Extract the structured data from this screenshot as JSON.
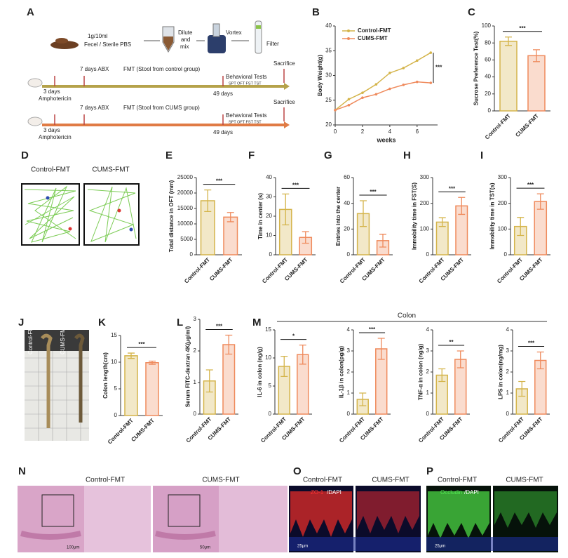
{
  "panel_letters": [
    "A",
    "B",
    "C",
    "D",
    "E",
    "F",
    "G",
    "H",
    "I",
    "J",
    "K",
    "L",
    "M",
    "N",
    "O",
    "P"
  ],
  "schematic": {
    "ratio": "1g/10ml",
    "medium": "Fecel / Sterile PBS",
    "dilute": [
      "Dilute",
      "and",
      "mix"
    ],
    "vortex": "Vortex",
    "filter": "Filter",
    "rows": [
      {
        "abx": "7 days ABX",
        "fmt": "FMT (Stool from control group)",
        "tests": "Behavioral Tests",
        "test_list": "SPT  OFT  FST  TST",
        "sacrifice": "Sacrifice",
        "days": "3 days",
        "drug": "Amphotericin",
        "duration": "49 days"
      },
      {
        "abx": "7 days ABX",
        "fmt": "FMT (Stool from CUMS group)",
        "tests": "Behavioral Tests",
        "test_list": "SPT  OFT  FST  TST",
        "sacrifice": "Sacrifice",
        "days": "3 days",
        "drug": "Amphotericin",
        "duration": "49 days"
      }
    ]
  },
  "oft_tracks": {
    "groups": [
      "Control-FMT",
      "CUMS-FMT"
    ]
  },
  "colon_images": {
    "groups": [
      "Control-FMT",
      "CUMS-FMT"
    ]
  },
  "m_header": "Colon",
  "histology": {
    "groups": [
      "Control-FMT",
      "CUMS-FMT"
    ],
    "scale_left": "100μm",
    "scale_right": "50μm"
  },
  "zo1": {
    "groups": [
      "Control-FMT",
      "CUMS-FMT"
    ],
    "stain": "ZO-1",
    "counter": "/DAPI",
    "scale": "25μm"
  },
  "occludin": {
    "groups": [
      "Control-FMT",
      "CUMS-FMT"
    ],
    "stain": "Occludin",
    "counter": "/DAPI",
    "scale": "25μm"
  },
  "chart_data": [
    {
      "type": "line",
      "x": [
        0,
        1,
        2,
        3,
        4,
        5,
        6,
        7
      ],
      "xlim": [
        0,
        7.5
      ],
      "xticks": [
        0,
        2,
        4,
        6
      ],
      "xlabel": "weeks",
      "ylabel": "Body Weight(g)",
      "ylim": [
        20,
        40
      ],
      "yticks": [
        20,
        25,
        30,
        35,
        40
      ],
      "annotation": "***",
      "series": [
        {
          "name": "Control-FMT",
          "color": "#d4b44a",
          "values": [
            23,
            25.2,
            26.5,
            28.2,
            30.5,
            31.5,
            33,
            34.6
          ]
        },
        {
          "name": "CUMS-FMT",
          "color": "#ef8a5c",
          "values": [
            23,
            24,
            25.5,
            26.2,
            27.3,
            28.1,
            28.7,
            28.5
          ]
        }
      ]
    },
    {
      "type": "bar",
      "categories": [
        "Control-FMT",
        "CUMS-FMT"
      ],
      "values": [
        82,
        65
      ],
      "errors": [
        5,
        7
      ],
      "colors": [
        "#d4b44a",
        "#ef8a5c"
      ],
      "ylabel": "Sucrose Preference Test(%)",
      "ylim": [
        0,
        100
      ],
      "yticks": [
        0,
        20,
        40,
        60,
        80,
        100
      ],
      "annotation": "***"
    },
    {
      "type": "bar",
      "categories": [
        "Control-FMT",
        "CUMS-FMT"
      ],
      "values": [
        17500,
        12200
      ],
      "errors": [
        3500,
        1500
      ],
      "colors": [
        "#d4b44a",
        "#ef8a5c"
      ],
      "ylabel": "Total distance in OFT (mm)",
      "ylim": [
        0,
        25000
      ],
      "yticks": [
        0,
        5000,
        10000,
        15000,
        20000,
        25000
      ],
      "annotation": "***"
    },
    {
      "type": "bar",
      "categories": [
        "Control-FMT",
        "CUMS-FMT"
      ],
      "values": [
        23.5,
        9
      ],
      "errors": [
        8,
        3
      ],
      "colors": [
        "#d4b44a",
        "#ef8a5c"
      ],
      "ylabel": "Time in center (s)",
      "ylim": [
        0,
        40
      ],
      "yticks": [
        0,
        10,
        20,
        30,
        40
      ],
      "annotation": "***"
    },
    {
      "type": "bar",
      "categories": [
        "Control-FMT",
        "CUMS-FMT"
      ],
      "values": [
        32,
        11
      ],
      "errors": [
        10,
        5
      ],
      "colors": [
        "#d4b44a",
        "#ef8a5c"
      ],
      "ylabel": "Entries into the center",
      "ylim": [
        0,
        60
      ],
      "yticks": [
        0,
        20,
        40,
        60
      ],
      "annotation": "***"
    },
    {
      "type": "bar",
      "categories": [
        "Control-FMT",
        "CUMS-FMT"
      ],
      "values": [
        127,
        190
      ],
      "errors": [
        17,
        33
      ],
      "colors": [
        "#d4b44a",
        "#ef8a5c"
      ],
      "ylabel": "Immobility time in FST(S)",
      "ylim": [
        0,
        300
      ],
      "yticks": [
        0,
        100,
        200,
        300
      ],
      "annotation": "***"
    },
    {
      "type": "bar",
      "categories": [
        "Control-FMT",
        "CUMS-FMT"
      ],
      "values": [
        110,
        207
      ],
      "errors": [
        35,
        30
      ],
      "colors": [
        "#d4b44a",
        "#ef8a5c"
      ],
      "ylabel": "Immobility time in TST(s)",
      "ylim": [
        0,
        300
      ],
      "yticks": [
        0,
        100,
        200,
        300
      ],
      "annotation": "***"
    },
    {
      "type": "bar",
      "categories": [
        "Control-FMT",
        "CUMS-FMT"
      ],
      "values": [
        11.2,
        9.9
      ],
      "errors": [
        0.5,
        0.3
      ],
      "colors": [
        "#d4b44a",
        "#ef8a5c"
      ],
      "ylabel": "Colon length(cm)",
      "ylim": [
        0,
        15
      ],
      "yticks": [
        0,
        5,
        10,
        15
      ],
      "annotation": "***"
    },
    {
      "type": "bar",
      "categories": [
        "Control-FMT",
        "CUMS-FMT"
      ],
      "values": [
        1.05,
        2.2
      ],
      "errors": [
        0.35,
        0.3
      ],
      "colors": [
        "#d4b44a",
        "#ef8a5c"
      ],
      "ylabel": "Serum FITC-dextran 4K(μg/ml)",
      "ylim": [
        0,
        3
      ],
      "yticks": [
        0,
        1,
        2,
        3
      ],
      "annotation": "***"
    },
    {
      "type": "bar",
      "categories": [
        "Control-FMT",
        "CUMS-FMT"
      ],
      "values": [
        8.5,
        10.6
      ],
      "errors": [
        1.8,
        1.7
      ],
      "colors": [
        "#d4b44a",
        "#ef8a5c"
      ],
      "ylabel": "IL-6  in colon (ng/g)",
      "ylim": [
        0,
        15
      ],
      "yticks": [
        0,
        5,
        10,
        15
      ],
      "annotation": "*"
    },
    {
      "type": "bar",
      "categories": [
        "Control-FMT",
        "CUMS-FMT"
      ],
      "values": [
        0.7,
        3.1
      ],
      "errors": [
        0.3,
        0.5
      ],
      "colors": [
        "#d4b44a",
        "#ef8a5c"
      ],
      "ylabel": "IL-1β in colon(pg/g)",
      "ylim": [
        0,
        4
      ],
      "yticks": [
        0,
        1,
        2,
        3,
        4
      ],
      "annotation": "***"
    },
    {
      "type": "bar",
      "categories": [
        "Control-FMT",
        "CUMS-FMT"
      ],
      "values": [
        1.85,
        2.6
      ],
      "errors": [
        0.3,
        0.4
      ],
      "colors": [
        "#d4b44a",
        "#ef8a5c"
      ],
      "ylabel": "TNF-α in colon (ng/g)",
      "ylim": [
        0,
        4
      ],
      "yticks": [
        0,
        1,
        2,
        3,
        4
      ],
      "annotation": "**"
    },
    {
      "type": "bar",
      "categories": [
        "Control-FMT",
        "CUMS-FMT"
      ],
      "values": [
        1.2,
        2.55
      ],
      "errors": [
        0.35,
        0.4
      ],
      "colors": [
        "#d4b44a",
        "#ef8a5c"
      ],
      "ylabel": "LPS in colon(ng/mg)",
      "ylim": [
        0,
        4
      ],
      "yticks": [
        0,
        1,
        2,
        3,
        4
      ],
      "annotation": "***"
    }
  ]
}
